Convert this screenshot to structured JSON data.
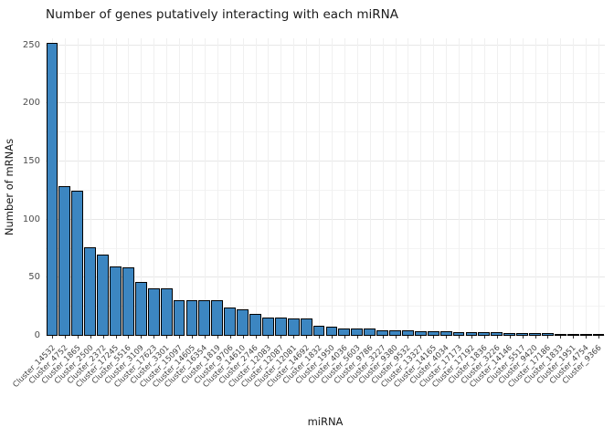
{
  "chart_data": {
    "type": "bar",
    "title": "Number of genes putatively interacting with each miRNA",
    "xlabel": "miRNA",
    "ylabel": "Number of mRNAs",
    "ylim": [
      0,
      256
    ],
    "yticks": [
      0,
      50,
      100,
      150,
      200,
      250
    ],
    "grid": "horizontal major+minor, vertical per category, no axis lines",
    "legend": "none",
    "bar_color": "#3c86c1",
    "bar_border_color": "#000000",
    "categories": [
      "Cluster_14532",
      "Cluster_4752",
      "Cluster_1865",
      "Cluster_2500",
      "Cluster_2372",
      "Cluster_17245",
      "Cluster_5516",
      "Cluster_3109",
      "Cluster_17623",
      "Cluster_3301",
      "Cluster_15097",
      "Cluster_14605",
      "Cluster_16354",
      "Cluster_1819",
      "Cluster_9706",
      "Cluster_14610",
      "Cluster_2746",
      "Cluster_12083",
      "Cluster_12087",
      "Cluster_12081",
      "Cluster_14692",
      "Cluster_1832",
      "Cluster_1950",
      "Cluster_4036",
      "Cluster_5603",
      "Cluster_9786",
      "Cluster_3227",
      "Cluster_9380",
      "Cluster_9532",
      "Cluster_13327",
      "Cluster_14165",
      "Cluster_4034",
      "Cluster_17173",
      "Cluster_17192",
      "Cluster_1836",
      "Cluster_3226",
      "Cluster_14146",
      "Cluster_5517",
      "Cluster_9420",
      "Cluster_17186",
      "Cluster_1833",
      "Cluster_1951",
      "Cluster_4754",
      "Cluster_9366"
    ],
    "values": [
      252,
      129,
      125,
      76,
      70,
      60,
      59,
      46,
      41,
      41,
      31,
      31,
      31,
      31,
      24,
      23,
      19,
      16,
      16,
      15,
      15,
      9,
      8,
      6,
      6,
      6,
      5,
      5,
      5,
      4,
      4,
      4,
      3,
      3,
      3,
      3,
      2,
      2,
      2,
      2,
      1,
      1,
      1,
      1
    ]
  }
}
